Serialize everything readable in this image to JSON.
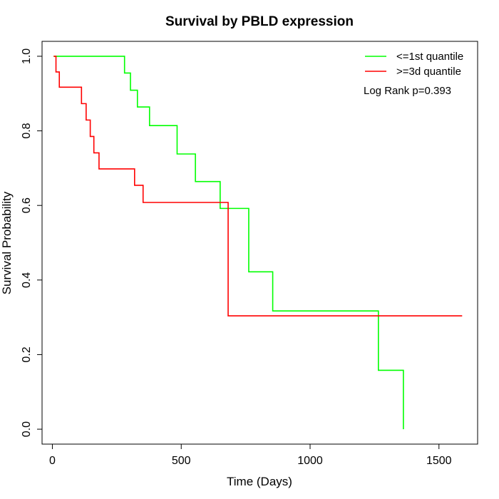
{
  "chart_data": {
    "type": "line",
    "title": "Survival by PBLD expression",
    "xlabel": "Time (Days)",
    "ylabel": "Survival Probability",
    "xlim": [
      -40,
      1650
    ],
    "ylim": [
      -0.04,
      1.04
    ],
    "x_ticks": [
      0,
      500,
      1000,
      1500
    ],
    "y_ticks": [
      0.0,
      0.2,
      0.4,
      0.6,
      0.8,
      1.0
    ],
    "x_tick_labels": [
      "0",
      "500",
      "1000",
      "1500"
    ],
    "y_tick_labels": [
      "0.0",
      "0.2",
      "0.4",
      "0.6",
      "0.8",
      "1.0"
    ],
    "grid": false,
    "legend_position": "top-right",
    "annotation": "Log Rank p=0.393",
    "series": [
      {
        "name": "<=1st quantile",
        "color": "#00ff00",
        "steps": [
          [
            5,
            1.0
          ],
          [
            280,
            0.955
          ],
          [
            303,
            0.909
          ],
          [
            330,
            0.864
          ],
          [
            377,
            0.814
          ],
          [
            484,
            0.738
          ],
          [
            555,
            0.664
          ],
          [
            651,
            0.592
          ],
          [
            762,
            0.422
          ],
          [
            855,
            0.317
          ],
          [
            1265,
            0.158
          ],
          [
            1362,
            0.0
          ]
        ],
        "end_x": 1362
      },
      {
        "name": ">=3d quantile",
        "color": "#ff0000",
        "steps": [
          [
            5,
            1.0
          ],
          [
            14,
            0.958
          ],
          [
            27,
            0.917
          ],
          [
            113,
            0.873
          ],
          [
            131,
            0.829
          ],
          [
            147,
            0.785
          ],
          [
            161,
            0.741
          ],
          [
            181,
            0.698
          ],
          [
            319,
            0.654
          ],
          [
            352,
            0.608
          ],
          [
            682,
            0.304
          ]
        ],
        "end_x": 1590
      }
    ]
  }
}
